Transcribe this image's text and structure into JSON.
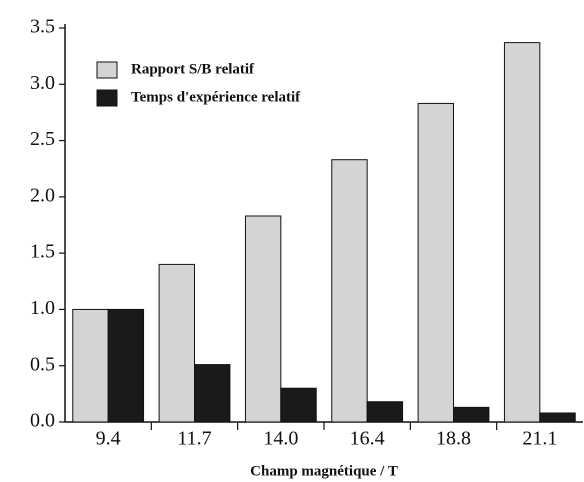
{
  "chart_data": {
    "type": "bar",
    "x_label": "Champ magnétique / T",
    "categories": [
      "9.4",
      "11.7",
      "14.0",
      "16.4",
      "18.8",
      "21.1"
    ],
    "series": [
      {
        "name": "Rapport S/B relatif",
        "color": "#d4d4d4",
        "values": [
          1.0,
          1.4,
          1.83,
          2.33,
          2.83,
          3.37
        ]
      },
      {
        "name": "Temps d'expérience relatif",
        "color": "#1a1a1a",
        "values": [
          1.0,
          0.51,
          0.3,
          0.18,
          0.13,
          0.08
        ]
      }
    ],
    "ylim": [
      0,
      3.5
    ],
    "yticks": [
      {
        "value": 0,
        "label": "0.0"
      },
      0.5,
      {
        "value": 1,
        "label": "1.0"
      },
      1.5,
      {
        "value": 2,
        "label": "2.0"
      },
      2.5,
      {
        "value": 3,
        "label": "3.0"
      },
      3.5
    ],
    "legend": "upper-left"
  }
}
